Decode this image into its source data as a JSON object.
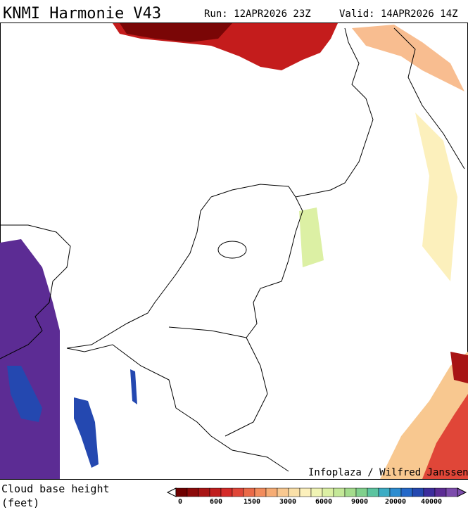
{
  "header": {
    "title": "KNMI Harmonie V43",
    "run": "Run: 12APR2026 23Z",
    "valid": "Valid: 14APR2026 14Z"
  },
  "map": {
    "credit": "Infoplaza / Wilfred Janssen"
  },
  "legend": {
    "label_lines": [
      "Cloud base height",
      "(feet)"
    ],
    "ticks": [
      0,
      600,
      1500,
      3000,
      6000,
      9000,
      20000,
      40000
    ],
    "colors": [
      "#6e0000",
      "#8c0a0a",
      "#a81414",
      "#c01e1e",
      "#d42a28",
      "#e04638",
      "#ea6a48",
      "#f28c5c",
      "#f6ac74",
      "#f8c890",
      "#fae0a8",
      "#fcf0bc",
      "#f0f4b4",
      "#dcf0a4",
      "#c4e898",
      "#a4dc8c",
      "#80d08c",
      "#5cc4a0",
      "#3cacc4",
      "#2c8cd0",
      "#2468c8",
      "#2448b0",
      "#3c2c9c",
      "#5c2c94",
      "#7c4cac"
    ]
  }
}
